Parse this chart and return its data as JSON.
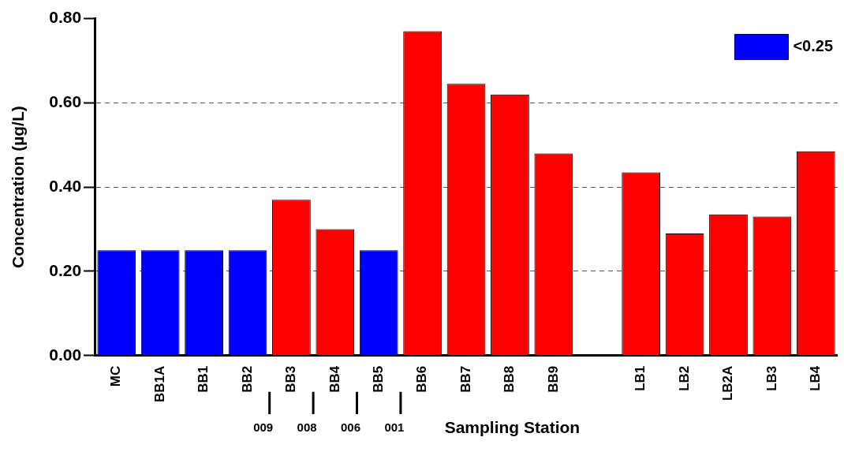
{
  "chart_data": {
    "type": "bar",
    "xlabel": "Sampling Station",
    "ylabel": "Concentration (µg/L)",
    "categories": [
      "MC",
      "BB1A",
      "BB1",
      "BB2",
      "BB3",
      "BB4",
      "BB5",
      "BB6",
      "BB7",
      "BB8",
      "BB9",
      null,
      "LB1",
      "LB2",
      "LB2A",
      "LB3",
      "LB4"
    ],
    "series": [
      {
        "name": "<0.25",
        "color": "#0000ff",
        "values": [
          0.25,
          0.25,
          0.25,
          0.25,
          null,
          null,
          0.25,
          null,
          null,
          null,
          null,
          null,
          null,
          null,
          null,
          null,
          null
        ]
      },
      {
        "color": "#ff0000",
        "values": [
          null,
          null,
          null,
          null,
          0.37,
          0.3,
          null,
          0.77,
          0.645,
          0.62,
          0.48,
          null,
          0.435,
          0.29,
          0.335,
          0.33,
          0.485
        ]
      }
    ],
    "ylim": [
      0,
      0.8
    ],
    "yticks": [
      {
        "value": 0,
        "label": "0.00"
      },
      {
        "value": 0.2,
        "label": "0.20"
      },
      {
        "value": 0.4,
        "label": "0.40"
      },
      {
        "value": 0.6,
        "label": "0.60"
      },
      {
        "value": 0.8,
        "label": "0.80"
      }
    ],
    "grid": "y",
    "legend": "top right",
    "annotations": [
      "009",
      "008",
      "006",
      "001"
    ]
  }
}
